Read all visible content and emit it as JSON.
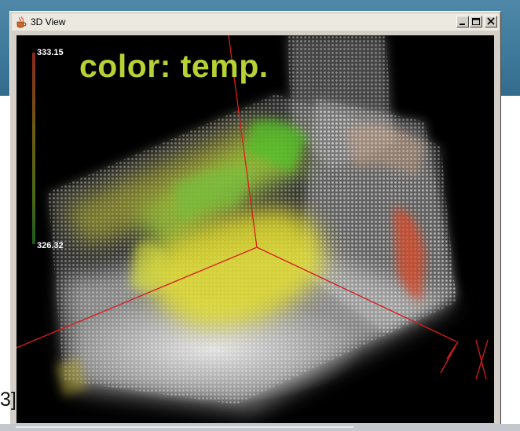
{
  "window": {
    "title": "3D View",
    "icon": "java-cup-icon",
    "controls": [
      "minimize-icon",
      "maximize-icon",
      "close-icon"
    ]
  },
  "overlay": {
    "label": "color: temp."
  },
  "legend": {
    "max_value": "333.15",
    "min_value": "326.32",
    "colors": [
      "#8a2a1a",
      "#6e5a14",
      "#4a6a18",
      "#1f5a1a"
    ]
  },
  "slide": {
    "fragment_text": "3]"
  },
  "colors": {
    "slide_band": "#3d789a",
    "axis_lines": "#d81c1c",
    "viewport_bg": "#000000"
  }
}
